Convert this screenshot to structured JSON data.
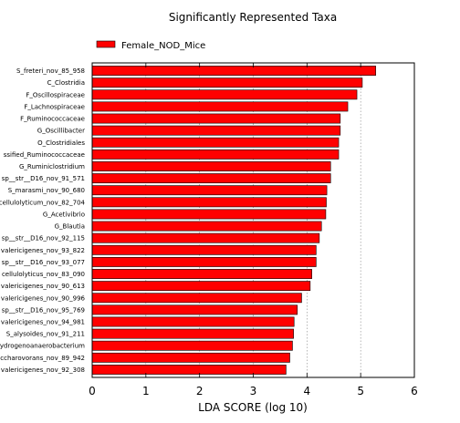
{
  "chart_data": {
    "type": "bar",
    "orientation": "horizontal",
    "title": "Significantly Represented Taxa",
    "xlabel": "LDA SCORE (log 10)",
    "ylabel": "",
    "xlim": [
      0,
      6
    ],
    "xticks": [
      "0",
      "1",
      "2",
      "3",
      "4",
      "5",
      "6"
    ],
    "grid": "vertical dotted",
    "legend_position": "top-left",
    "series": [
      {
        "name": "Female_NOD_Mice",
        "color": "#ff0000"
      }
    ],
    "categories": [
      "S_freteri_nov_85_958",
      "C_Clostridia",
      "F_Oscillospiraceae",
      "F_Lachnospiraceae",
      "F_Ruminococcaceae",
      "G_Oscillibacter",
      "O_Clostridiales",
      "ssified_Ruminococcaceae",
      "G_Ruminiclostridium",
      "sp__str__D16_nov_91_571",
      "S_marasmi_nov_90_680",
      "cellulolyticum_nov_82_704",
      "G_Acetivibrio",
      "G_Blautia",
      "sp__str__D16_nov_92_115",
      "valericigenes_nov_93_822",
      "sp__str__D16_nov_93_077",
      "cellulolyticus_nov_83_090",
      "valericigenes_nov_90_613",
      "valericigenes_nov_90_996",
      "sp__str__D16_nov_95_769",
      "valericigenes_nov_94_981",
      "S_alysoides_nov_91_211",
      "ydrogenoanaerobacterium",
      "ccharovorans_nov_89_942",
      "valericigenes_nov_92_308"
    ],
    "values": [
      5.28,
      5.03,
      4.93,
      4.76,
      4.62,
      4.62,
      4.59,
      4.59,
      4.44,
      4.44,
      4.37,
      4.36,
      4.35,
      4.27,
      4.23,
      4.17,
      4.17,
      4.09,
      4.06,
      3.9,
      3.82,
      3.76,
      3.75,
      3.73,
      3.68,
      3.61
    ]
  }
}
